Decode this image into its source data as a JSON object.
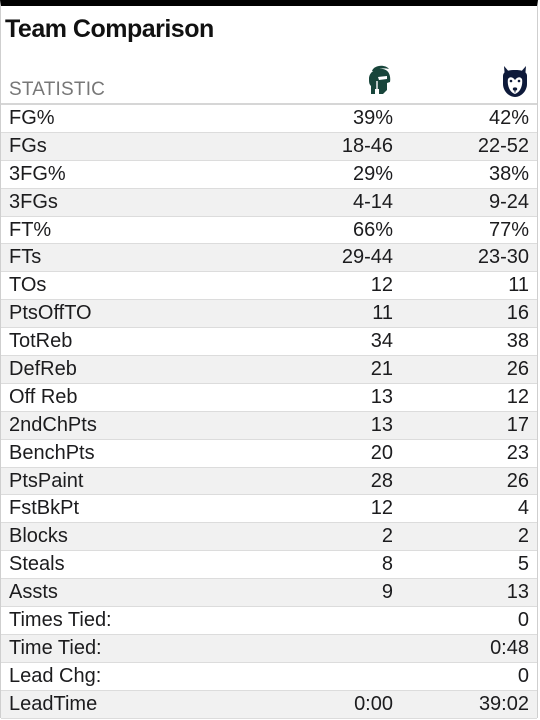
{
  "title": "Team Comparison",
  "header": {
    "statistic_label": "STATISTIC",
    "team1_logo": "spartan-helmet-icon",
    "team2_logo": "husky-icon"
  },
  "colors": {
    "team1": "#18453B",
    "team2": "#0E1A3A",
    "row_alt": "#f1f1f1",
    "border": "#dcdcdc"
  },
  "rows": [
    {
      "stat": "FG%",
      "team1": "39%",
      "team2": "42%"
    },
    {
      "stat": "FGs",
      "team1": "18-46",
      "team2": "22-52"
    },
    {
      "stat": "3FG%",
      "team1": "29%",
      "team2": "38%"
    },
    {
      "stat": "3FGs",
      "team1": "4-14",
      "team2": "9-24"
    },
    {
      "stat": "FT%",
      "team1": "66%",
      "team2": "77%"
    },
    {
      "stat": "FTs",
      "team1": "29-44",
      "team2": "23-30"
    },
    {
      "stat": "TOs",
      "team1": "12",
      "team2": "11"
    },
    {
      "stat": "PtsOffTO",
      "team1": "11",
      "team2": "16"
    },
    {
      "stat": "TotReb",
      "team1": "34",
      "team2": "38"
    },
    {
      "stat": "DefReb",
      "team1": "21",
      "team2": "26"
    },
    {
      "stat": "Off Reb",
      "team1": "13",
      "team2": "12"
    },
    {
      "stat": "2ndChPts",
      "team1": "13",
      "team2": "17"
    },
    {
      "stat": "BenchPts",
      "team1": "20",
      "team2": "23"
    },
    {
      "stat": "PtsPaint",
      "team1": "28",
      "team2": "26"
    },
    {
      "stat": "FstBkPt",
      "team1": "12",
      "team2": "4"
    },
    {
      "stat": "Blocks",
      "team1": "2",
      "team2": "2"
    },
    {
      "stat": "Steals",
      "team1": "8",
      "team2": "5"
    },
    {
      "stat": "Assts",
      "team1": "9",
      "team2": "13"
    },
    {
      "stat": "Times Tied:",
      "team1": "",
      "team2": "0"
    },
    {
      "stat": "Time Tied:",
      "team1": "",
      "team2": "0:48"
    },
    {
      "stat": "Lead Chg:",
      "team1": "",
      "team2": "0"
    },
    {
      "stat": "LeadTime",
      "team1": "0:00",
      "team2": "39:02"
    }
  ]
}
